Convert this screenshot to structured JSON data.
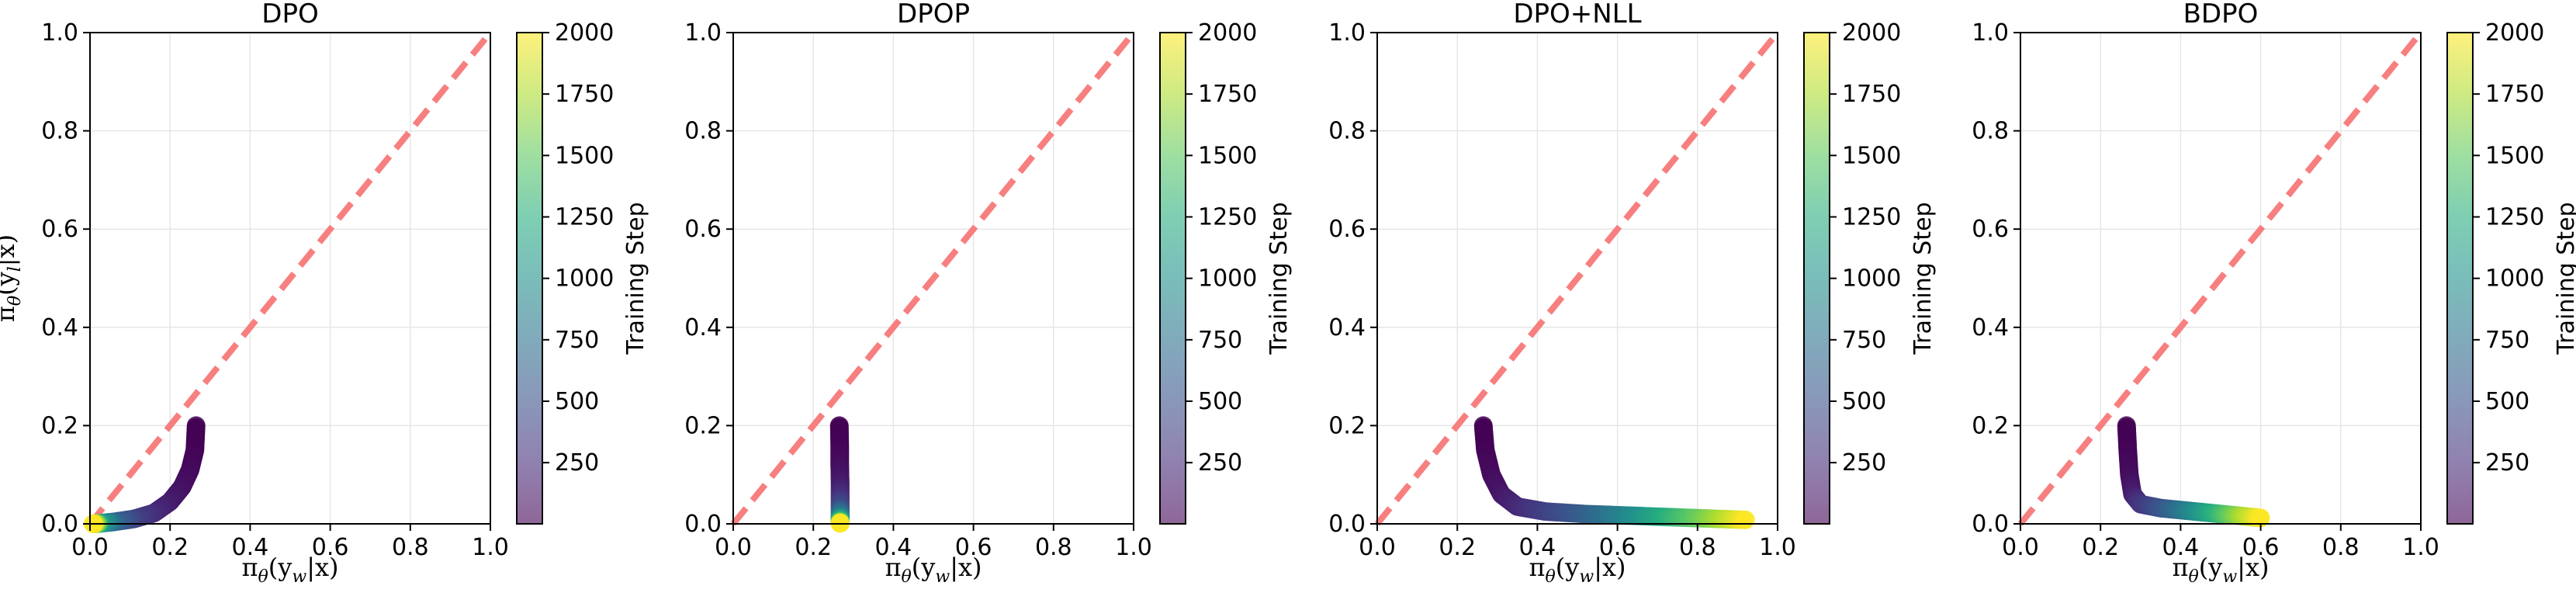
{
  "figure": {
    "colormap_name": "viridis",
    "diagonal_color": "#f77f7f"
  },
  "chart_data": [
    {
      "type": "scatter",
      "title": "DPO",
      "xlabel": "π_θ(y_w|x)",
      "ylabel": "π_θ(y_l|x)",
      "show_ylabel": true,
      "xlim": [
        0.0,
        1.0
      ],
      "ylim": [
        0.0,
        1.0
      ],
      "xticks": [
        "0.0",
        "0.2",
        "0.4",
        "0.6",
        "0.8",
        "1.0"
      ],
      "yticks": [
        "0.0",
        "0.2",
        "0.4",
        "0.6",
        "0.8",
        "1.0"
      ],
      "grid": true,
      "reference_line": {
        "from": [
          0,
          0
        ],
        "to": [
          1,
          1
        ],
        "style": "dashed"
      },
      "colorbar": {
        "label": "Training Step",
        "range": [
          1,
          2000
        ],
        "ticks": [
          "250",
          "500",
          "750",
          "1000",
          "1250",
          "1500",
          "1750",
          "2000"
        ]
      },
      "trajectory": [
        {
          "x": 0.265,
          "y": 0.2,
          "step": 1
        },
        {
          "x": 0.262,
          "y": 0.15,
          "step": 15
        },
        {
          "x": 0.25,
          "y": 0.11,
          "step": 40
        },
        {
          "x": 0.23,
          "y": 0.075,
          "step": 80
        },
        {
          "x": 0.2,
          "y": 0.045,
          "step": 140
        },
        {
          "x": 0.16,
          "y": 0.022,
          "step": 230
        },
        {
          "x": 0.11,
          "y": 0.01,
          "step": 380
        },
        {
          "x": 0.06,
          "y": 0.004,
          "step": 650
        },
        {
          "x": 0.025,
          "y": 0.001,
          "step": 1100
        },
        {
          "x": 0.008,
          "y": 0.0,
          "step": 2000
        }
      ]
    },
    {
      "type": "scatter",
      "title": "DPOP",
      "xlabel": "π_θ(y_w|x)",
      "ylabel": "π_θ(y_l|x)",
      "show_ylabel": false,
      "xlim": [
        0.0,
        1.0
      ],
      "ylim": [
        0.0,
        1.0
      ],
      "xticks": [
        "0.0",
        "0.2",
        "0.4",
        "0.6",
        "0.8",
        "1.0"
      ],
      "yticks": [
        "0.0",
        "0.2",
        "0.4",
        "0.6",
        "0.8",
        "1.0"
      ],
      "grid": true,
      "reference_line": {
        "from": [
          0,
          0
        ],
        "to": [
          1,
          1
        ],
        "style": "dashed"
      },
      "colorbar": {
        "label": "Training Step",
        "range": [
          1,
          2000
        ],
        "ticks": [
          "250",
          "500",
          "750",
          "1000",
          "1250",
          "1500",
          "1750",
          "2000"
        ]
      },
      "trajectory": [
        {
          "x": 0.265,
          "y": 0.2,
          "step": 1
        },
        {
          "x": 0.266,
          "y": 0.16,
          "step": 20
        },
        {
          "x": 0.266,
          "y": 0.12,
          "step": 60
        },
        {
          "x": 0.267,
          "y": 0.085,
          "step": 130
        },
        {
          "x": 0.267,
          "y": 0.055,
          "step": 250
        },
        {
          "x": 0.267,
          "y": 0.032,
          "step": 450
        },
        {
          "x": 0.267,
          "y": 0.015,
          "step": 800
        },
        {
          "x": 0.267,
          "y": 0.005,
          "step": 1300
        },
        {
          "x": 0.267,
          "y": 0.001,
          "step": 2000
        }
      ]
    },
    {
      "type": "scatter",
      "title": "DPO+NLL",
      "xlabel": "π_θ(y_w|x)",
      "ylabel": "π_θ(y_l|x)",
      "show_ylabel": false,
      "xlim": [
        0.0,
        1.0
      ],
      "ylim": [
        0.0,
        1.0
      ],
      "xticks": [
        "0.0",
        "0.2",
        "0.4",
        "0.6",
        "0.8",
        "1.0"
      ],
      "yticks": [
        "0.0",
        "0.2",
        "0.4",
        "0.6",
        "0.8",
        "1.0"
      ],
      "grid": true,
      "reference_line": {
        "from": [
          0,
          0
        ],
        "to": [
          1,
          1
        ],
        "style": "dashed"
      },
      "colorbar": {
        "label": "Training Step",
        "range": [
          1,
          2000
        ],
        "ticks": [
          "250",
          "500",
          "750",
          "1000",
          "1250",
          "1500",
          "1750",
          "2000"
        ]
      },
      "trajectory": [
        {
          "x": 0.265,
          "y": 0.2,
          "step": 1
        },
        {
          "x": 0.27,
          "y": 0.15,
          "step": 20
        },
        {
          "x": 0.285,
          "y": 0.1,
          "step": 60
        },
        {
          "x": 0.31,
          "y": 0.06,
          "step": 120
        },
        {
          "x": 0.35,
          "y": 0.035,
          "step": 220
        },
        {
          "x": 0.42,
          "y": 0.025,
          "step": 380
        },
        {
          "x": 0.52,
          "y": 0.02,
          "step": 600
        },
        {
          "x": 0.62,
          "y": 0.017,
          "step": 900
        },
        {
          "x": 0.72,
          "y": 0.014,
          "step": 1250
        },
        {
          "x": 0.82,
          "y": 0.011,
          "step": 1600
        },
        {
          "x": 0.92,
          "y": 0.008,
          "step": 2000
        }
      ]
    },
    {
      "type": "scatter",
      "title": "BDPO",
      "xlabel": "π_θ(y_w|x)",
      "ylabel": "π_θ(y_l|x)",
      "show_ylabel": false,
      "xlim": [
        0.0,
        1.0
      ],
      "ylim": [
        0.0,
        1.0
      ],
      "xticks": [
        "0.0",
        "0.2",
        "0.4",
        "0.6",
        "0.8",
        "1.0"
      ],
      "yticks": [
        "0.0",
        "0.2",
        "0.4",
        "0.6",
        "0.8",
        "1.0"
      ],
      "grid": true,
      "reference_line": {
        "from": [
          0,
          0
        ],
        "to": [
          1,
          1
        ],
        "style": "dashed"
      },
      "colorbar": {
        "label": "Training Step",
        "range": [
          1,
          2000
        ],
        "ticks": [
          "250",
          "500",
          "750",
          "1000",
          "1250",
          "1500",
          "1750",
          "2000"
        ]
      },
      "trajectory": [
        {
          "x": 0.265,
          "y": 0.2,
          "step": 1
        },
        {
          "x": 0.268,
          "y": 0.15,
          "step": 20
        },
        {
          "x": 0.272,
          "y": 0.1,
          "step": 60
        },
        {
          "x": 0.28,
          "y": 0.06,
          "step": 150
        },
        {
          "x": 0.3,
          "y": 0.04,
          "step": 300
        },
        {
          "x": 0.35,
          "y": 0.032,
          "step": 500
        },
        {
          "x": 0.4,
          "y": 0.028,
          "step": 750
        },
        {
          "x": 0.45,
          "y": 0.024,
          "step": 1050
        },
        {
          "x": 0.5,
          "y": 0.02,
          "step": 1350
        },
        {
          "x": 0.55,
          "y": 0.016,
          "step": 1700
        },
        {
          "x": 0.6,
          "y": 0.012,
          "step": 2000
        }
      ]
    }
  ]
}
